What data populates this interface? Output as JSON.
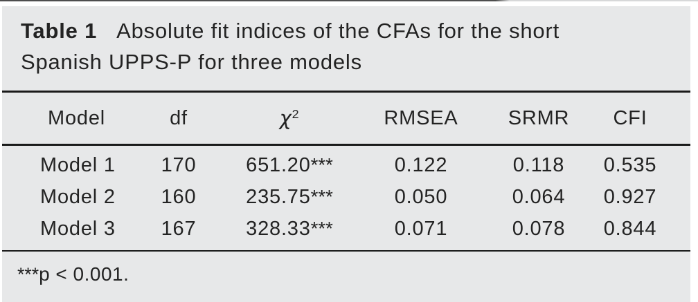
{
  "title": {
    "label": "Table 1",
    "line1": "Absolute fit indices of the CFAs for the short",
    "line2": "Spanish UPPS-P for three models"
  },
  "header": {
    "model": "Model",
    "df": "df",
    "chi_base": "χ",
    "chi_sup": "2",
    "rmsea": "RMSEA",
    "srmr": "SRMR",
    "cfi": "CFI"
  },
  "rows": [
    {
      "model": "Model 1",
      "df": "170",
      "chi": "651.20",
      "stars": "***",
      "rmsea": "0.122",
      "srmr": "0.118",
      "cfi": "0.535"
    },
    {
      "model": "Model 2",
      "df": "160",
      "chi": "235.75",
      "stars": "***",
      "rmsea": "0.050",
      "srmr": "0.064",
      "cfi": "0.927"
    },
    {
      "model": "Model 3",
      "df": "167",
      "chi": "328.33",
      "stars": "***",
      "rmsea": "0.071",
      "srmr": "0.078",
      "cfi": "0.844"
    }
  ],
  "footnote": {
    "stars": "***",
    "text": "p < 0.001."
  },
  "colors": {
    "panel-bg": "#e7e8e9",
    "rule": "#1a1a1a",
    "text": "#232323",
    "page-bg": "#ffffff"
  }
}
